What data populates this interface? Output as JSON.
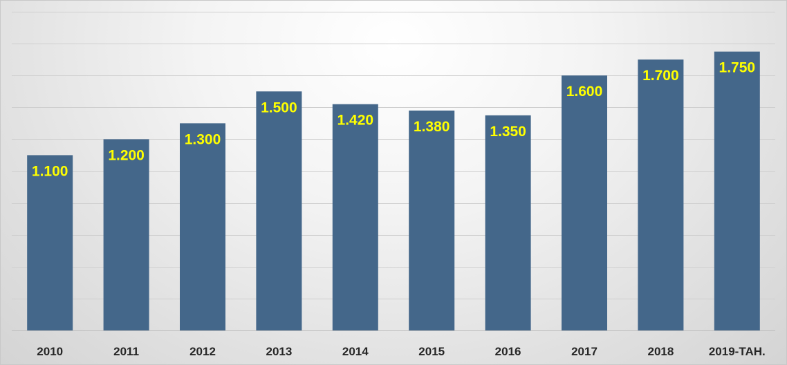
{
  "chart_data": {
    "type": "bar",
    "categories": [
      "2010",
      "2011",
      "2012",
      "2013",
      "2014",
      "2015",
      "2016",
      "2017",
      "2018",
      "2019-TAH."
    ],
    "values": [
      1100,
      1200,
      1300,
      1500,
      1420,
      1380,
      1350,
      1600,
      1700,
      1750
    ],
    "data_labels": [
      "1.100",
      "1.200",
      "1.300",
      "1.500",
      "1.420",
      "1.380",
      "1.350",
      "1.600",
      "1.700",
      "1.750"
    ],
    "ylim": [
      0,
      2000
    ],
    "grid": true,
    "y_tick_labels_shown": false,
    "legend": "none",
    "colors": {
      "bar": "#44678a",
      "data_label": "#ffff00",
      "tick_label": "#262626",
      "grid": "#cfcfcf"
    }
  }
}
